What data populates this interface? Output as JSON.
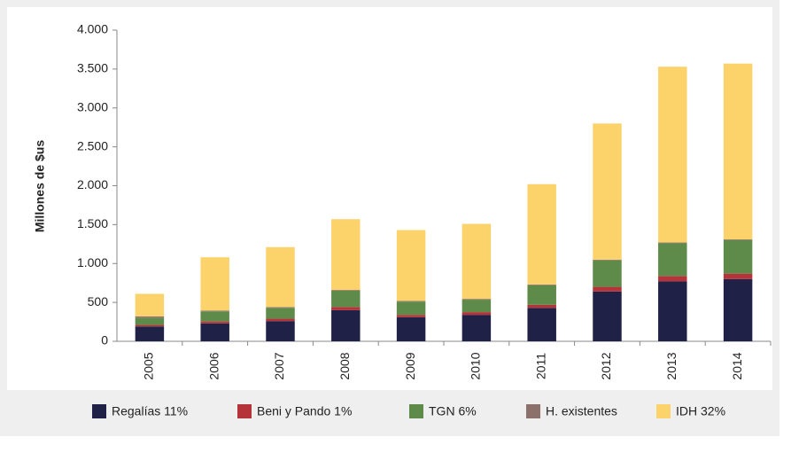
{
  "chart_data": {
    "type": "stacked_bar",
    "y_label": "Millones de $us",
    "categories": [
      "2005",
      "2006",
      "2007",
      "2008",
      "2009",
      "2010",
      "2011",
      "2012",
      "2013",
      "2014"
    ],
    "series": [
      {
        "name": "Regalías 11%",
        "color": "#1f2146",
        "values": [
          190,
          230,
          260,
          400,
          310,
          340,
          430,
          640,
          770,
          800
        ]
      },
      {
        "name": "Beni y Pando 1%",
        "color": "#b5343a",
        "values": [
          20,
          25,
          30,
          40,
          30,
          35,
          40,
          60,
          70,
          70
        ]
      },
      {
        "name": "TGN 6%",
        "color": "#5e8a4a",
        "values": [
          90,
          130,
          140,
          210,
          170,
          160,
          250,
          340,
          420,
          430
        ]
      },
      {
        "name": "H. existentes",
        "color": "#8c706a",
        "values": [
          20,
          10,
          10,
          10,
          10,
          10,
          10,
          10,
          10,
          10
        ]
      },
      {
        "name": "IDH 32%",
        "color": "#fcd36b",
        "values": [
          290,
          685,
          770,
          910,
          910,
          965,
          1290,
          1750,
          2260,
          2260
        ]
      }
    ],
    "ylim": [
      0,
      4000
    ],
    "yticks": [
      0,
      500,
      {
        "value": 1000,
        "label": "1.000"
      },
      {
        "value": 1500,
        "label": "1.500"
      },
      {
        "value": 2000,
        "label": "2.000"
      },
      {
        "value": 2500,
        "label": "2.500"
      },
      {
        "value": 3000,
        "label": "3.000"
      },
      {
        "value": 3500,
        "label": "3.500"
      },
      {
        "value": 4000,
        "label": "4.000"
      }
    ],
    "legend": "bottom"
  }
}
